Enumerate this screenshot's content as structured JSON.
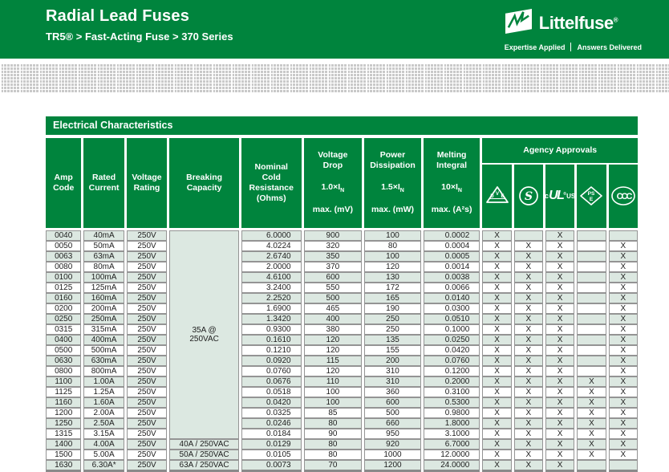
{
  "page": {
    "header": {
      "title": "Radial Lead Fuses",
      "subtitle": "TR5® > Fast-Acting Fuse > 370 Series",
      "brand": {
        "name": "Littelfuse",
        "reg": "®",
        "tagline_left": "Expertise Applied",
        "tagline_right": "Answers Delivered"
      }
    },
    "section_title": "Electrical Characteristics",
    "colors": {
      "brand_green": "#00843D",
      "row_alt_green": "#DCE8E1",
      "checker_gray": "#C9C9C9",
      "cell_border_gray": "#949494",
      "bottom_bar_gray": "#8A8A8A"
    }
  },
  "table": {
    "headers": {
      "amp_code": "Amp\nCode",
      "rated_current": "Rated\nCurrent",
      "voltage_rating": "Voltage\nRating",
      "breaking_capacity": "Breaking\nCapacity",
      "nominal_cold_resistance": "Nominal\nCold\nResistance\n(Ohms)",
      "voltage_drop": {
        "top": "Voltage\nDrop",
        "base": "1.0×I",
        "sub": "N",
        "bottom": "max. (mV)"
      },
      "power_dissipation": {
        "top": "Power\nDissipation",
        "base": "1.5×I",
        "sub": "N",
        "bottom": "max. (mW)"
      },
      "melting_integral": {
        "top": "Melting\nIntegral",
        "base": "10×I",
        "sub": "N",
        "bottom": "max. (A²s)"
      },
      "agency_approvals": "Agency Approvals",
      "agency_icons": [
        {
          "name": "vde",
          "letter_left": "D",
          "letter_top": "V",
          "letter_right": "E"
        },
        {
          "name": "s-mark",
          "letters": "S"
        },
        {
          "name": "c-ul-us",
          "prefix": "c",
          "letters": "UL",
          "reg": "®",
          "suffix": "US"
        },
        {
          "name": "pse",
          "letters_top": "PS",
          "letters_bottom": "E"
        },
        {
          "name": "ccc",
          "letters": "CCC"
        }
      ]
    },
    "breaking_capacity_merged": {
      "text": "35A @\n250VAC",
      "rowspan": 20
    },
    "rows": [
      {
        "amp_code": "0040",
        "rated_current": "40mA",
        "voltage_rating": "250V",
        "breaking_capacity": "",
        "nominal_cold_resistance": "6.0000",
        "voltage_drop": "900",
        "power_dissipation": "100",
        "melting_integral": "0.0002",
        "approvals": [
          "X",
          "",
          "X",
          "",
          ""
        ]
      },
      {
        "amp_code": "0050",
        "rated_current": "50mA",
        "voltage_rating": "250V",
        "breaking_capacity": "",
        "nominal_cold_resistance": "4.0224",
        "voltage_drop": "320",
        "power_dissipation": "80",
        "melting_integral": "0.0004",
        "approvals": [
          "X",
          "X",
          "X",
          "",
          "X"
        ]
      },
      {
        "amp_code": "0063",
        "rated_current": "63mA",
        "voltage_rating": "250V",
        "breaking_capacity": "",
        "nominal_cold_resistance": "2.6740",
        "voltage_drop": "350",
        "power_dissipation": "100",
        "melting_integral": "0.0005",
        "approvals": [
          "X",
          "X",
          "X",
          "",
          "X"
        ]
      },
      {
        "amp_code": "0080",
        "rated_current": "80mA",
        "voltage_rating": "250V",
        "breaking_capacity": "",
        "nominal_cold_resistance": "2.0000",
        "voltage_drop": "370",
        "power_dissipation": "120",
        "melting_integral": "0.0014",
        "approvals": [
          "X",
          "X",
          "X",
          "",
          "X"
        ]
      },
      {
        "amp_code": "0100",
        "rated_current": "100mA",
        "voltage_rating": "250V",
        "breaking_capacity": "",
        "nominal_cold_resistance": "4.6100",
        "voltage_drop": "600",
        "power_dissipation": "130",
        "melting_integral": "0.0038",
        "approvals": [
          "X",
          "X",
          "X",
          "",
          "X"
        ]
      },
      {
        "amp_code": "0125",
        "rated_current": "125mA",
        "voltage_rating": "250V",
        "breaking_capacity": "",
        "nominal_cold_resistance": "3.2400",
        "voltage_drop": "550",
        "power_dissipation": "172",
        "melting_integral": "0.0066",
        "approvals": [
          "X",
          "X",
          "X",
          "",
          "X"
        ]
      },
      {
        "amp_code": "0160",
        "rated_current": "160mA",
        "voltage_rating": "250V",
        "breaking_capacity": "",
        "nominal_cold_resistance": "2.2520",
        "voltage_drop": "500",
        "power_dissipation": "165",
        "melting_integral": "0.0140",
        "approvals": [
          "X",
          "X",
          "X",
          "",
          "X"
        ]
      },
      {
        "amp_code": "0200",
        "rated_current": "200mA",
        "voltage_rating": "250V",
        "breaking_capacity": "",
        "nominal_cold_resistance": "1.6900",
        "voltage_drop": "465",
        "power_dissipation": "190",
        "melting_integral": "0.0300",
        "approvals": [
          "X",
          "X",
          "X",
          "",
          "X"
        ]
      },
      {
        "amp_code": "0250",
        "rated_current": "250mA",
        "voltage_rating": "250V",
        "breaking_capacity": "",
        "nominal_cold_resistance": "1.3420",
        "voltage_drop": "400",
        "power_dissipation": "250",
        "melting_integral": "0.0510",
        "approvals": [
          "X",
          "X",
          "X",
          "",
          "X"
        ]
      },
      {
        "amp_code": "0315",
        "rated_current": "315mA",
        "voltage_rating": "250V",
        "breaking_capacity": "",
        "nominal_cold_resistance": "0.9300",
        "voltage_drop": "380",
        "power_dissipation": "250",
        "melting_integral": "0.1000",
        "approvals": [
          "X",
          "X",
          "X",
          "",
          "X"
        ]
      },
      {
        "amp_code": "0400",
        "rated_current": "400mA",
        "voltage_rating": "250V",
        "breaking_capacity": "",
        "nominal_cold_resistance": "0.1610",
        "voltage_drop": "120",
        "power_dissipation": "135",
        "melting_integral": "0.0250",
        "approvals": [
          "X",
          "X",
          "X",
          "",
          "X"
        ]
      },
      {
        "amp_code": "0500",
        "rated_current": "500mA",
        "voltage_rating": "250V",
        "breaking_capacity": "",
        "nominal_cold_resistance": "0.1210",
        "voltage_drop": "120",
        "power_dissipation": "155",
        "melting_integral": "0.0420",
        "approvals": [
          "X",
          "X",
          "X",
          "",
          "X"
        ]
      },
      {
        "amp_code": "0630",
        "rated_current": "630mA",
        "voltage_rating": "250V",
        "breaking_capacity": "",
        "nominal_cold_resistance": "0.0920",
        "voltage_drop": "115",
        "power_dissipation": "200",
        "melting_integral": "0.0760",
        "approvals": [
          "X",
          "X",
          "X",
          "",
          "X"
        ]
      },
      {
        "amp_code": "0800",
        "rated_current": "800mA",
        "voltage_rating": "250V",
        "breaking_capacity": "",
        "nominal_cold_resistance": "0.0760",
        "voltage_drop": "120",
        "power_dissipation": "310",
        "melting_integral": "0.1200",
        "approvals": [
          "X",
          "X",
          "X",
          "",
          "X"
        ]
      },
      {
        "amp_code": "1100",
        "rated_current": "1.00A",
        "voltage_rating": "250V",
        "breaking_capacity": "",
        "nominal_cold_resistance": "0.0676",
        "voltage_drop": "110",
        "power_dissipation": "310",
        "melting_integral": "0.2000",
        "approvals": [
          "X",
          "X",
          "X",
          "X",
          "X"
        ]
      },
      {
        "amp_code": "1125",
        "rated_current": "1.25A",
        "voltage_rating": "250V",
        "breaking_capacity": "",
        "nominal_cold_resistance": "0.0518",
        "voltage_drop": "100",
        "power_dissipation": "360",
        "melting_integral": "0.3100",
        "approvals": [
          "X",
          "X",
          "X",
          "X",
          "X"
        ]
      },
      {
        "amp_code": "1160",
        "rated_current": "1.60A",
        "voltage_rating": "250V",
        "breaking_capacity": "",
        "nominal_cold_resistance": "0.0420",
        "voltage_drop": "100",
        "power_dissipation": "600",
        "melting_integral": "0.5300",
        "approvals": [
          "X",
          "X",
          "X",
          "X",
          "X"
        ]
      },
      {
        "amp_code": "1200",
        "rated_current": "2.00A",
        "voltage_rating": "250V",
        "breaking_capacity": "",
        "nominal_cold_resistance": "0.0325",
        "voltage_drop": "85",
        "power_dissipation": "500",
        "melting_integral": "0.9800",
        "approvals": [
          "X",
          "X",
          "X",
          "X",
          "X"
        ]
      },
      {
        "amp_code": "1250",
        "rated_current": "2.50A",
        "voltage_rating": "250V",
        "breaking_capacity": "",
        "nominal_cold_resistance": "0.0246",
        "voltage_drop": "80",
        "power_dissipation": "660",
        "melting_integral": "1.8000",
        "approvals": [
          "X",
          "X",
          "X",
          "X",
          "X"
        ]
      },
      {
        "amp_code": "1315",
        "rated_current": "3.15A",
        "voltage_rating": "250V",
        "breaking_capacity": "",
        "nominal_cold_resistance": "0.0184",
        "voltage_drop": "90",
        "power_dissipation": "950",
        "melting_integral": "3.1000",
        "approvals": [
          "X",
          "X",
          "X",
          "X",
          "X"
        ]
      },
      {
        "amp_code": "1400",
        "rated_current": "4.00A",
        "voltage_rating": "250V",
        "breaking_capacity": "40A / 250VAC",
        "nominal_cold_resistance": "0.0129",
        "voltage_drop": "80",
        "power_dissipation": "920",
        "melting_integral": "6.7000",
        "approvals": [
          "X",
          "X",
          "X",
          "X",
          "X"
        ]
      },
      {
        "amp_code": "1500",
        "rated_current": "5.00A",
        "voltage_rating": "250V",
        "breaking_capacity": "50A / 250VAC",
        "nominal_cold_resistance": "0.0105",
        "voltage_drop": "80",
        "power_dissipation": "1000",
        "melting_integral": "12.0000",
        "approvals": [
          "X",
          "X",
          "X",
          "X",
          "X"
        ]
      },
      {
        "amp_code": "1630",
        "rated_current": "6.30A*",
        "voltage_rating": "250V",
        "breaking_capacity": "63A / 250VAC",
        "nominal_cold_resistance": "0.0073",
        "voltage_drop": "70",
        "power_dissipation": "1200",
        "melting_integral": "24.0000",
        "approvals": [
          "X",
          "X",
          "X",
          "",
          ""
        ]
      }
    ]
  }
}
